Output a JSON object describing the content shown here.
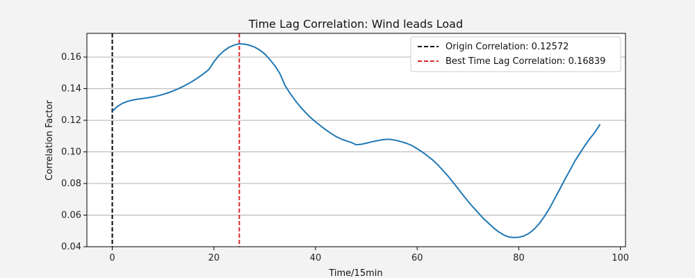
{
  "chart_data": {
    "type": "line",
    "title": "Time Lag Correlation: Wind leads Load",
    "xlabel": "Time/15min",
    "ylabel": "Correlation Factor",
    "xlim": [
      -5,
      101
    ],
    "ylim": [
      0.04,
      0.175
    ],
    "xticks": [
      0,
      20,
      40,
      60,
      80,
      100
    ],
    "yticks": [
      0.04,
      0.06,
      0.08,
      0.1,
      0.12,
      0.14,
      0.16
    ],
    "xtick_labels": [
      "0",
      "20",
      "40",
      "60",
      "80",
      "100"
    ],
    "ytick_labels": [
      "0.04",
      "0.06",
      "0.08",
      "0.10",
      "0.12",
      "0.14",
      "0.16"
    ],
    "grid": "horizontal",
    "legend_position": "top-right",
    "series": [
      {
        "color": "#1f77b4",
        "x": [
          0,
          1,
          2,
          3,
          4,
          5,
          6,
          7,
          8,
          9,
          10,
          11,
          12,
          13,
          14,
          15,
          16,
          17,
          18,
          19,
          20,
          21,
          22,
          23,
          24,
          25,
          26,
          27,
          28,
          29,
          30,
          31,
          32,
          33,
          34,
          35,
          36,
          37,
          38,
          39,
          40,
          41,
          42,
          43,
          44,
          45,
          46,
          47,
          48,
          49,
          50,
          51,
          52,
          53,
          54,
          55,
          56,
          57,
          58,
          59,
          60,
          61,
          62,
          63,
          64,
          65,
          66,
          67,
          68,
          69,
          70,
          71,
          72,
          73,
          74,
          75,
          76,
          77,
          78,
          79,
          80,
          81,
          82,
          83,
          84,
          85,
          86,
          87,
          88,
          89,
          90,
          91,
          92,
          93,
          94,
          95,
          96
        ],
        "y": [
          0.1257,
          0.1288,
          0.1307,
          0.132,
          0.1328,
          0.1334,
          0.1338,
          0.1343,
          0.1348,
          0.1355,
          0.1364,
          0.1374,
          0.1386,
          0.14,
          0.1415,
          0.1432,
          0.1451,
          0.1472,
          0.1496,
          0.1521,
          0.157,
          0.161,
          0.164,
          0.1662,
          0.1676,
          0.1684,
          0.1682,
          0.1675,
          0.1663,
          0.1645,
          0.162,
          0.1585,
          0.1545,
          0.1495,
          0.142,
          0.137,
          0.1325,
          0.1285,
          0.125,
          0.1218,
          0.119,
          0.1165,
          0.114,
          0.1118,
          0.1098,
          0.1082,
          0.107,
          0.106,
          0.1045,
          0.1048,
          0.1055,
          0.1063,
          0.107,
          0.1076,
          0.108,
          0.1078,
          0.1072,
          0.1063,
          0.1053,
          0.104,
          0.102,
          0.1,
          0.0975,
          0.095,
          0.092,
          0.0885,
          0.085,
          0.081,
          0.077,
          0.0728,
          0.0688,
          0.065,
          0.0615,
          0.058,
          0.055,
          0.052,
          0.0495,
          0.0475,
          0.0462,
          0.0458,
          0.046,
          0.0468,
          0.0485,
          0.051,
          0.0545,
          0.059,
          0.064,
          0.07,
          0.076,
          0.0822,
          0.088,
          0.094,
          0.099,
          0.104,
          0.1085,
          0.1125,
          0.1175
        ]
      }
    ],
    "vlines": [
      {
        "x": 0,
        "color": "#000000",
        "label": "Origin Correlation: 0.12572"
      },
      {
        "x": 25,
        "color": "#d62728",
        "label": "Best Time Lag Correlation: 0.16839"
      }
    ]
  }
}
